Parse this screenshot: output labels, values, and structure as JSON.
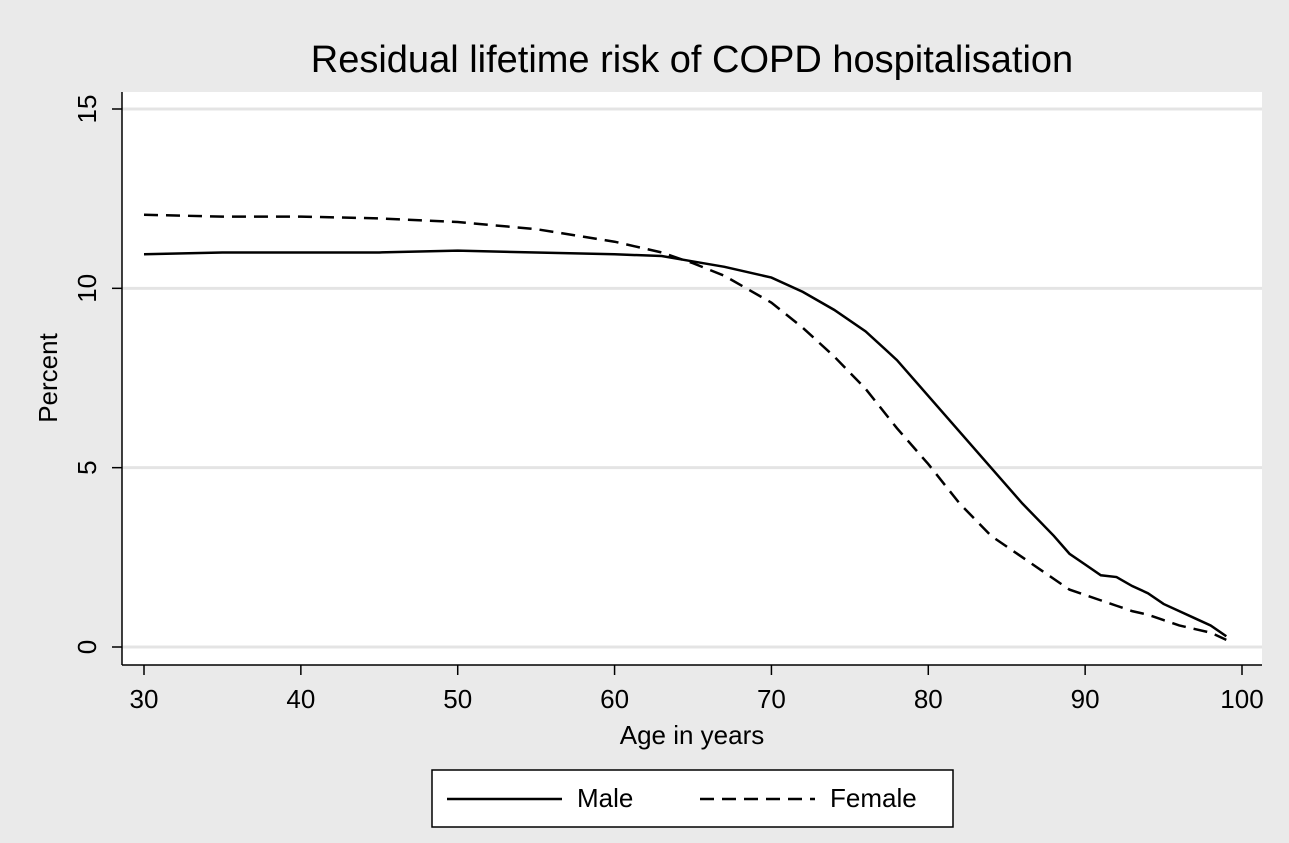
{
  "chart_data": {
    "type": "line",
    "title": "Residual lifetime risk of COPD hospitalisation",
    "x_label": "Age in years",
    "y_label": "Percent",
    "x": [
      30,
      35,
      40,
      45,
      50,
      55,
      60,
      63,
      65,
      67,
      70,
      72,
      74,
      76,
      78,
      80,
      82,
      84,
      86,
      88,
      89,
      90,
      91,
      92,
      93,
      94,
      95,
      96,
      97,
      98,
      99
    ],
    "series": [
      {
        "name": "Male",
        "color": "#000000",
        "dash": "solid",
        "values": [
          10.95,
          11.0,
          11.0,
          11.0,
          11.05,
          11.0,
          10.95,
          10.9,
          10.75,
          10.6,
          10.3,
          9.9,
          9.4,
          8.8,
          8.0,
          7.0,
          6.0,
          5.0,
          4.0,
          3.1,
          2.6,
          2.3,
          2.0,
          1.95,
          1.7,
          1.5,
          1.2,
          1.0,
          0.8,
          0.6,
          0.3
        ]
      },
      {
        "name": "Female",
        "color": "#000000",
        "dash": "dashed",
        "values": [
          12.05,
          12.0,
          12.0,
          11.95,
          11.85,
          11.65,
          11.3,
          11.0,
          10.7,
          10.35,
          9.6,
          8.9,
          8.1,
          7.2,
          6.1,
          5.1,
          4.0,
          3.1,
          2.5,
          1.9,
          1.6,
          1.45,
          1.3,
          1.15,
          1.0,
          0.9,
          0.75,
          0.6,
          0.5,
          0.4,
          0.2
        ]
      }
    ],
    "xlim": [
      30,
      100
    ],
    "xticks": [
      30,
      40,
      50,
      60,
      70,
      80,
      90,
      100
    ],
    "ylim": [
      0,
      15
    ],
    "yticks": [
      0,
      5,
      10,
      15
    ],
    "grid": true,
    "legend": "bottom"
  }
}
